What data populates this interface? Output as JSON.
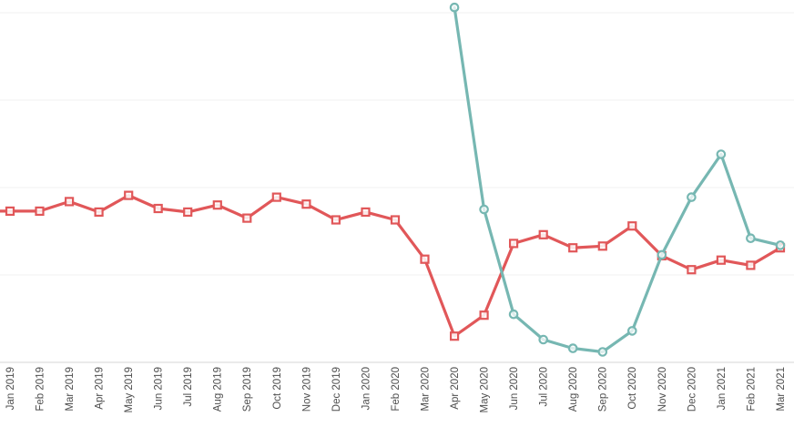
{
  "chart_data": {
    "type": "line",
    "title": "",
    "xlabel": "",
    "ylabel": "",
    "x_categories": [
      "Jan 2019",
      "Feb 2019",
      "Mar 2019",
      "Apr 2019",
      "May 2019",
      "Jun 2019",
      "Jul 2019",
      "Aug 2019",
      "Sep 2019",
      "Oct 2019",
      "Nov 2019",
      "Dec 2019",
      "Jan 2020",
      "Feb 2020",
      "Mar 2020",
      "Apr 2020",
      "May 2020",
      "Jun 2020",
      "Jul 2020",
      "Aug 2020",
      "Sep 2020",
      "Oct 2020",
      "Nov 2020",
      "Dec 2020",
      "Jan 2021",
      "Feb 2021",
      "Mar 2021"
    ],
    "x_label_rotation_degrees": -90,
    "y_axis": {
      "tick_labels_visible": false,
      "unit": "gridline-units (no y-axis labels shown; 1 unit = one gridline interval above baseline)",
      "ylim": [
        0,
        4.2
      ],
      "gridline_values": [
        1,
        2,
        3,
        4
      ],
      "grid": true
    },
    "legend": {
      "visible": false
    },
    "series": [
      {
        "name": "red-series",
        "color": "#e15759",
        "marker": "square",
        "clipped_at_left": true,
        "values": [
          1.73,
          1.73,
          1.84,
          1.72,
          1.91,
          1.76,
          1.72,
          1.8,
          1.65,
          1.89,
          1.81,
          1.63,
          1.72,
          1.63,
          1.18,
          0.3,
          0.54,
          1.36,
          1.46,
          1.31,
          1.33,
          1.56,
          1.22,
          1.06,
          1.17,
          1.11,
          1.31
        ]
      },
      {
        "name": "teal-series",
        "color": "#76b7b2",
        "marker": "circle",
        "clipped_at_left": false,
        "values": [
          null,
          null,
          null,
          null,
          null,
          null,
          null,
          null,
          null,
          null,
          null,
          null,
          null,
          null,
          null,
          4.06,
          1.75,
          0.55,
          0.26,
          0.16,
          0.12,
          0.36,
          1.23,
          1.89,
          2.38,
          1.42,
          1.34
        ]
      }
    ],
    "colors": {
      "grid_color": "#f0f0f0",
      "axis_line_color": "#d4d4d4",
      "label_color": "#4e4e4e",
      "marker_fill": "#ffffff",
      "background": "#ffffff"
    }
  }
}
